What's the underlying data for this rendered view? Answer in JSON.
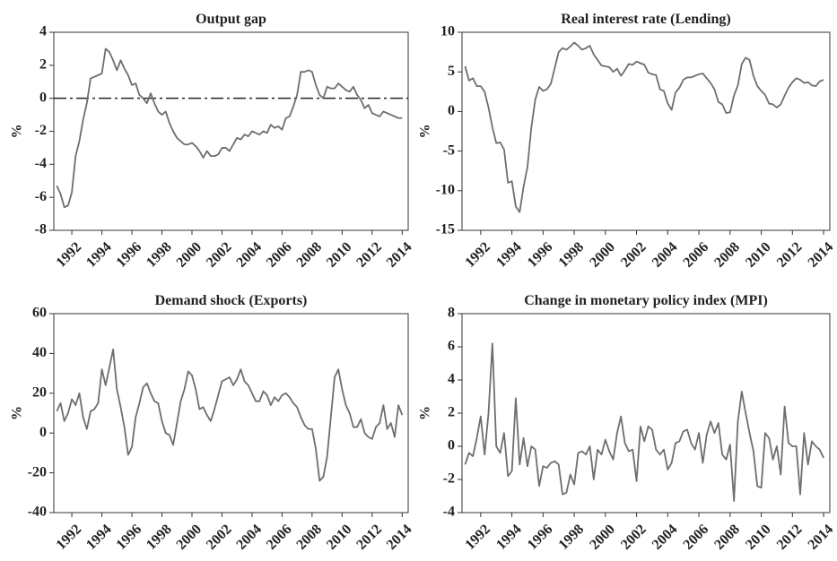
{
  "chart_data": [
    {
      "type": "line",
      "title": "Output gap",
      "ylabel": "%",
      "color": "#6e6e6e",
      "x": [
        1991,
        1991.25,
        1991.5,
        1991.75,
        1992,
        1992.25,
        1992.5,
        1992.75,
        1993,
        1993.25,
        1993.5,
        1993.75,
        1994,
        1994.25,
        1994.5,
        1994.75,
        1995,
        1995.25,
        1995.5,
        1995.75,
        1996,
        1996.25,
        1996.5,
        1996.75,
        1997,
        1997.25,
        1997.5,
        1997.75,
        1998,
        1998.25,
        1998.5,
        1998.75,
        1999,
        1999.25,
        1999.5,
        1999.75,
        2000,
        2000.25,
        2000.5,
        2000.75,
        2001,
        2001.25,
        2001.5,
        2001.75,
        2002,
        2002.25,
        2002.5,
        2002.75,
        2003,
        2003.25,
        2003.5,
        2003.75,
        2004,
        2004.25,
        2004.5,
        2004.75,
        2005,
        2005.25,
        2005.5,
        2005.75,
        2006,
        2006.25,
        2006.5,
        2006.75,
        2007,
        2007.25,
        2007.5,
        2007.75,
        2008,
        2008.25,
        2008.5,
        2008.75,
        2009,
        2009.25,
        2009.5,
        2009.75,
        2010,
        2010.25,
        2010.5,
        2010.75,
        2011,
        2011.25,
        2011.5,
        2011.75,
        2012,
        2012.25,
        2012.5,
        2012.75,
        2013,
        2013.25,
        2013.5,
        2013.75,
        2014
      ],
      "values": [
        -5.3,
        -5.8,
        -6.6,
        -6.5,
        -5.7,
        -3.5,
        -2.6,
        -1.3,
        -0.3,
        1.2,
        1.3,
        1.4,
        1.5,
        3.0,
        2.8,
        2.3,
        1.7,
        2.3,
        1.8,
        1.4,
        0.8,
        0.9,
        0.2,
        0.0,
        -0.3,
        0.3,
        -0.3,
        -0.8,
        -1.0,
        -0.8,
        -1.5,
        -2.0,
        -2.4,
        -2.6,
        -2.8,
        -2.8,
        -2.7,
        -2.9,
        -3.2,
        -3.6,
        -3.2,
        -3.5,
        -3.5,
        -3.4,
        -3.0,
        -3.0,
        -3.2,
        -2.8,
        -2.4,
        -2.5,
        -2.2,
        -2.3,
        -2.0,
        -2.1,
        -2.2,
        -2.0,
        -2.1,
        -1.6,
        -1.8,
        -1.7,
        -1.9,
        -1.2,
        -1.1,
        -0.5,
        0.2,
        1.6,
        1.6,
        1.7,
        1.6,
        0.8,
        0.2,
        0.0,
        0.7,
        0.6,
        0.6,
        0.9,
        0.7,
        0.5,
        0.4,
        0.7,
        0.2,
        -0.1,
        -0.6,
        -0.4,
        -0.9,
        -1.0,
        -1.1,
        -0.8,
        -0.9,
        -1.0,
        -1.1,
        -1.2,
        -1.2
      ],
      "reference_line": {
        "value": 0,
        "style": "dashdot",
        "color": "#222222"
      },
      "xlim": [
        1990.8,
        2014.4
      ],
      "xticks": [
        1992,
        1994,
        1996,
        1998,
        2000,
        2002,
        2004,
        2006,
        2008,
        2010,
        2012,
        2014
      ],
      "ylim": [
        -8,
        4
      ],
      "yticks": [
        -8,
        -6,
        -4,
        -2,
        0,
        2,
        4
      ]
    },
    {
      "type": "line",
      "title": "Real interest rate (Lending)",
      "ylabel": "%",
      "color": "#6e6e6e",
      "x": [
        1991,
        1991.25,
        1991.5,
        1991.75,
        1992,
        1992.25,
        1992.5,
        1992.75,
        1993,
        1993.25,
        1993.5,
        1993.75,
        1994,
        1994.25,
        1994.5,
        1994.75,
        1995,
        1995.25,
        1995.5,
        1995.75,
        1996,
        1996.25,
        1996.5,
        1996.75,
        1997,
        1997.25,
        1997.5,
        1997.75,
        1998,
        1998.25,
        1998.5,
        1998.75,
        1999,
        1999.25,
        1999.5,
        1999.75,
        2000,
        2000.25,
        2000.5,
        2000.75,
        2001,
        2001.25,
        2001.5,
        2001.75,
        2002,
        2002.25,
        2002.5,
        2002.75,
        2003,
        2003.25,
        2003.5,
        2003.75,
        2004,
        2004.25,
        2004.5,
        2004.75,
        2005,
        2005.25,
        2005.5,
        2005.75,
        2006,
        2006.25,
        2006.5,
        2006.75,
        2007,
        2007.25,
        2007.5,
        2007.75,
        2008,
        2008.25,
        2008.5,
        2008.75,
        2009,
        2009.25,
        2009.5,
        2009.75,
        2010,
        2010.25,
        2010.5,
        2010.75,
        2011,
        2011.25,
        2011.5,
        2011.75,
        2012,
        2012.25,
        2012.5,
        2012.75,
        2013,
        2013.25,
        2013.5,
        2013.75,
        2014
      ],
      "values": [
        5.7,
        3.9,
        4.2,
        3.2,
        3.2,
        2.5,
        0.5,
        -2,
        -4,
        -3.9,
        -4.8,
        -9,
        -8.8,
        -12,
        -12.7,
        -9.5,
        -7,
        -2,
        1.5,
        3.1,
        2.6,
        2.8,
        3.5,
        5.5,
        7.5,
        8.0,
        7.8,
        8.2,
        8.7,
        8.3,
        7.8,
        8.0,
        8.3,
        7.2,
        6.5,
        5.8,
        5.7,
        5.6,
        5.0,
        5.4,
        4.5,
        5.2,
        6.0,
        5.9,
        6.3,
        6.1,
        5.9,
        4.9,
        4.7,
        4.6,
        2.8,
        2.6,
        1.0,
        0.2,
        2.4,
        3.0,
        4.0,
        4.3,
        4.3,
        4.5,
        4.7,
        4.8,
        4.2,
        3.6,
        2.8,
        1.2,
        0.9,
        -0.2,
        -0.1,
        2.0,
        3.3,
        6.0,
        6.8,
        6.5,
        4.5,
        3.2,
        2.6,
        2.1,
        1.0,
        0.9,
        0.5,
        0.9,
        2.0,
        3.0,
        3.7,
        4.2,
        4.0,
        3.6,
        3.7,
        3.3,
        3.2,
        3.8,
        4.0
      ],
      "xlim": [
        1990.8,
        2014.4
      ],
      "xticks": [
        1992,
        1994,
        1996,
        1998,
        2000,
        2002,
        2004,
        2006,
        2008,
        2010,
        2012,
        2014
      ],
      "ylim": [
        -15,
        10
      ],
      "yticks": [
        -15,
        -10,
        -5,
        0,
        5,
        10
      ]
    },
    {
      "type": "line",
      "title": "Demand shock (Exports)",
      "ylabel": "%",
      "color": "#6e6e6e",
      "x": [
        1991,
        1991.25,
        1991.5,
        1991.75,
        1992,
        1992.25,
        1992.5,
        1992.75,
        1993,
        1993.25,
        1993.5,
        1993.75,
        1994,
        1994.25,
        1994.5,
        1994.75,
        1995,
        1995.25,
        1995.5,
        1995.75,
        1996,
        1996.25,
        1996.5,
        1996.75,
        1997,
        1997.25,
        1997.5,
        1997.75,
        1998,
        1998.25,
        1998.5,
        1998.75,
        1999,
        1999.25,
        1999.5,
        1999.75,
        2000,
        2000.25,
        2000.5,
        2000.75,
        2001,
        2001.25,
        2001.5,
        2001.75,
        2002,
        2002.25,
        2002.5,
        2002.75,
        2003,
        2003.25,
        2003.5,
        2003.75,
        2004,
        2004.25,
        2004.5,
        2004.75,
        2005,
        2005.25,
        2005.5,
        2005.75,
        2006,
        2006.25,
        2006.5,
        2006.75,
        2007,
        2007.25,
        2007.5,
        2007.75,
        2008,
        2008.25,
        2008.5,
        2008.75,
        2009,
        2009.25,
        2009.5,
        2009.75,
        2010,
        2010.25,
        2010.5,
        2010.75,
        2011,
        2011.25,
        2011.5,
        2011.75,
        2012,
        2012.25,
        2012.5,
        2012.75,
        2013,
        2013.25,
        2013.5,
        2013.75,
        2014
      ],
      "values": [
        11,
        15,
        6,
        10,
        17,
        14,
        20,
        8,
        2,
        11,
        12,
        15,
        32,
        24,
        33,
        42,
        22,
        13,
        3,
        -11,
        -7,
        8,
        15,
        23,
        25,
        20,
        16,
        15,
        6,
        0,
        -1,
        -6,
        5,
        16,
        22,
        31,
        29,
        22,
        12,
        13,
        9,
        6,
        12,
        19,
        26,
        27,
        28,
        24,
        27,
        32,
        26,
        24,
        20,
        16,
        16,
        21,
        19,
        14,
        18,
        16,
        19,
        20,
        18,
        15,
        13,
        8,
        4,
        2,
        2,
        -8,
        -24,
        -22,
        -12,
        8,
        28,
        32,
        22,
        14,
        10,
        3,
        3,
        7,
        0,
        -2,
        -3,
        3,
        5,
        14,
        2,
        5,
        -2,
        14,
        9
      ],
      "xlim": [
        1990.8,
        2014.4
      ],
      "xticks": [
        1992,
        1994,
        1996,
        1998,
        2000,
        2002,
        2004,
        2006,
        2008,
        2010,
        2012,
        2014
      ],
      "ylim": [
        -40,
        60
      ],
      "yticks": [
        -40,
        -20,
        0,
        20,
        40,
        60
      ]
    },
    {
      "type": "line",
      "title": "Change in monetary policy index (MPI)",
      "ylabel": "%",
      "color": "#6e6e6e",
      "x": [
        1991,
        1991.25,
        1991.5,
        1991.75,
        1992,
        1992.25,
        1992.5,
        1992.75,
        1993,
        1993.25,
        1993.5,
        1993.75,
        1994,
        1994.25,
        1994.5,
        1994.75,
        1995,
        1995.25,
        1995.5,
        1995.75,
        1996,
        1996.25,
        1996.5,
        1996.75,
        1997,
        1997.25,
        1997.5,
        1997.75,
        1998,
        1998.25,
        1998.5,
        1998.75,
        1999,
        1999.25,
        1999.5,
        1999.75,
        2000,
        2000.25,
        2000.5,
        2000.75,
        2001,
        2001.25,
        2001.5,
        2001.75,
        2002,
        2002.25,
        2002.5,
        2002.75,
        2003,
        2003.25,
        2003.5,
        2003.75,
        2004,
        2004.25,
        2004.5,
        2004.75,
        2005,
        2005.25,
        2005.5,
        2005.75,
        2006,
        2006.25,
        2006.5,
        2006.75,
        2007,
        2007.25,
        2007.5,
        2007.75,
        2008,
        2008.25,
        2008.5,
        2008.75,
        2009,
        2009.25,
        2009.5,
        2009.75,
        2010,
        2010.25,
        2010.5,
        2010.75,
        2011,
        2011.25,
        2011.5,
        2011.75,
        2012,
        2012.25,
        2012.5,
        2012.75,
        2013,
        2013.25,
        2013.5,
        2013.75,
        2014
      ],
      "values": [
        -1.1,
        -0.4,
        -0.6,
        0.5,
        1.8,
        -0.5,
        2,
        6.2,
        0,
        -0.4,
        0.8,
        -1.8,
        -1.5,
        2.9,
        -1.1,
        0.5,
        -1.2,
        0,
        -0.2,
        -2.4,
        -1.2,
        -1.3,
        -1,
        -0.9,
        -1.1,
        -2.9,
        -2.8,
        -1.7,
        -2.3,
        -0.4,
        -0.3,
        -0.5,
        0,
        -2,
        -0.2,
        -0.5,
        0.4,
        -0.3,
        -0.8,
        0.8,
        1.8,
        0.2,
        -0.3,
        -0.2,
        -2.1,
        1.2,
        0.3,
        1.2,
        1,
        -0.2,
        -0.5,
        -0.2,
        -1.4,
        -1,
        0.2,
        0.3,
        0.9,
        1,
        0.2,
        -0.2,
        0.8,
        -1,
        0.7,
        1.5,
        0.8,
        1.4,
        -0.5,
        -0.8,
        0.1,
        -3.3,
        1.5,
        3.3,
        2,
        0.8,
        -0.3,
        -2.4,
        -2.5,
        0.8,
        0.5,
        -0.8,
        0,
        -1.7,
        2.4,
        0.2,
        0,
        0,
        -2.9,
        0.8,
        -1.1,
        0.3,
        0.0,
        -0.2,
        -0.7
      ],
      "xlim": [
        1990.8,
        2014.4
      ],
      "xticks": [
        1992,
        1994,
        1996,
        1998,
        2000,
        2002,
        2004,
        2006,
        2008,
        2010,
        2012,
        2014
      ],
      "ylim": [
        -4,
        8
      ],
      "yticks": [
        -4,
        -2,
        0,
        2,
        4,
        6,
        8
      ]
    }
  ]
}
